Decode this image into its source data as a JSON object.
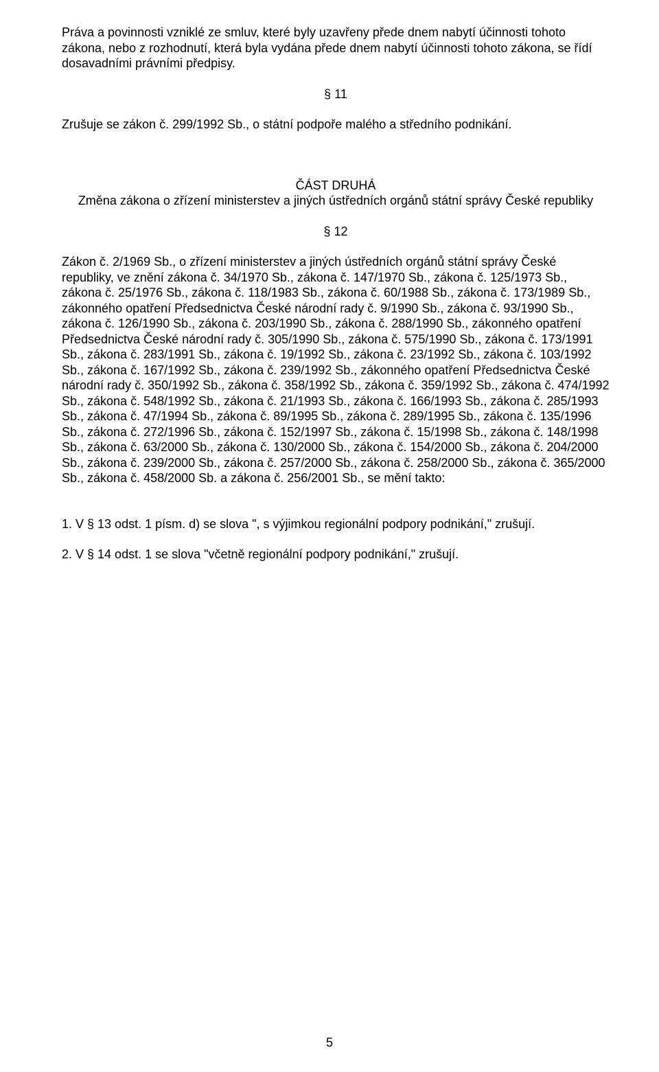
{
  "p1": "Práva a povinnosti vzniklé ze smluv, které byly uzavřeny přede dnem nabytí účinnosti tohoto zákona, nebo z rozhodnutí, která byla vydána přede dnem nabytí účinnosti tohoto zákona, se řídí dosavadními právními předpisy.",
  "s11": "§ 11",
  "p2": "Zrušuje se zákon č. 299/1992 Sb., o státní podpoře malého a středního podnikání.",
  "part2_title": "ČÁST DRUHÁ",
  "part2_sub": "Změna zákona o zřízení ministerstev a jiných ústředních orgánů státní správy České republiky",
  "s12": "§ 12",
  "p3": "Zákon č. 2/1969 Sb., o zřízení ministerstev a jiných ústředních orgánů státní správy České republiky, ve znění zákona č. 34/1970 Sb., zákona č. 147/1970 Sb., zákona č. 125/1973 Sb., zákona č. 25/1976 Sb., zákona č. 118/1983 Sb., zákona č. 60/1988 Sb., zákona č. 173/1989 Sb., zákonného opatření Předsednictva České národní rady č. 9/1990 Sb., zákona č. 93/1990 Sb., zákona č. 126/1990 Sb., zákona č. 203/1990 Sb., zákona č. 288/1990 Sb., zákonného opatření Předsednictva České národní rady č. 305/1990 Sb., zákona č. 575/1990 Sb., zákona č. 173/1991 Sb., zákona č. 283/1991 Sb., zákona č. 19/1992 Sb., zákona č. 23/1992 Sb., zákona č. 103/1992 Sb., zákona č. 167/1992 Sb., zákona č. 239/1992 Sb., zákonného opatření Předsednictva České národní rady č. 350/1992 Sb., zákona č. 358/1992 Sb., zákona č. 359/1992 Sb., zákona č. 474/1992 Sb., zákona č. 548/1992 Sb., zákona č. 21/1993 Sb., zákona č. 166/1993 Sb., zákona č. 285/1993 Sb., zákona č. 47/1994 Sb., zákona č. 89/1995 Sb., zákona č. 289/1995 Sb., zákona č. 135/1996 Sb., zákona č. 272/1996 Sb., zákona č. 152/1997 Sb., zákona č. 15/1998 Sb., zákona č. 148/1998 Sb., zákona č. 63/2000 Sb., zákona č. 130/2000 Sb., zákona č. 154/2000 Sb., zákona č. 204/2000 Sb., zákona č. 239/2000 Sb., zákona č. 257/2000 Sb., zákona č. 258/2000 Sb., zákona č. 365/2000 Sb., zákona č. 458/2000 Sb. a zákona č. 256/2001 Sb., se mění takto:",
  "p4": "1. V § 13 odst. 1 písm. d) se slova \", s výjimkou regionální podpory podnikání,\" zrušují.",
  "p5": "2. V § 14 odst. 1 se slova \"včetně regionální podpory podnikání,\" zrušují.",
  "page_number": "5"
}
